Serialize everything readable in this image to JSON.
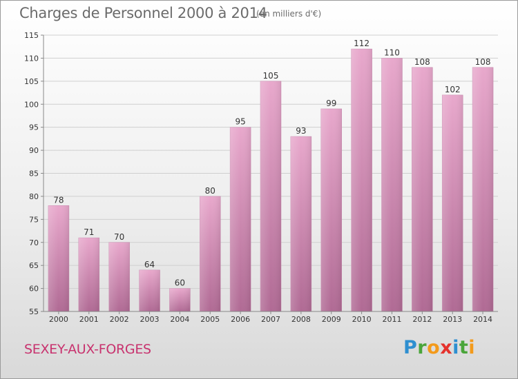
{
  "header": {
    "title": "Charges de Personnel 2000 à 2014",
    "subtitle": "(en milliers d'€)"
  },
  "footer": {
    "commune": "SEXEY-AUX-FORGES",
    "logo_letters": [
      {
        "ch": "P",
        "color": "#2e8fd0"
      },
      {
        "ch": "r",
        "color": "#4aa53a"
      },
      {
        "ch": "o",
        "color": "#f39a1b"
      },
      {
        "ch": "x",
        "color": "#e5322d"
      },
      {
        "ch": "i",
        "color": "#2e8fd0"
      },
      {
        "ch": "t",
        "color": "#4aa53a"
      },
      {
        "ch": "i",
        "color": "#f39a1b"
      }
    ]
  },
  "colors": {
    "bar_top": "#e8a8cc",
    "bar_bottom": "#b06a94",
    "grid": "#cfcfcf",
    "axis_text": "#333333"
  },
  "chart_data": {
    "type": "bar",
    "title": "Charges de Personnel 2000 à 2014",
    "subtitle": "(en milliers d'€)",
    "categories": [
      "2000",
      "2001",
      "2002",
      "2003",
      "2004",
      "2005",
      "2006",
      "2007",
      "2008",
      "2009",
      "2010",
      "2011",
      "2012",
      "2013",
      "2014"
    ],
    "values": [
      78,
      71,
      70,
      64,
      60,
      80,
      95,
      105,
      93,
      99,
      112,
      110,
      108,
      102,
      108
    ],
    "ylim": [
      55,
      115
    ],
    "yticks": [
      55,
      60,
      65,
      70,
      75,
      80,
      85,
      90,
      95,
      100,
      105,
      110,
      115
    ],
    "grid": true,
    "legend": "none"
  }
}
